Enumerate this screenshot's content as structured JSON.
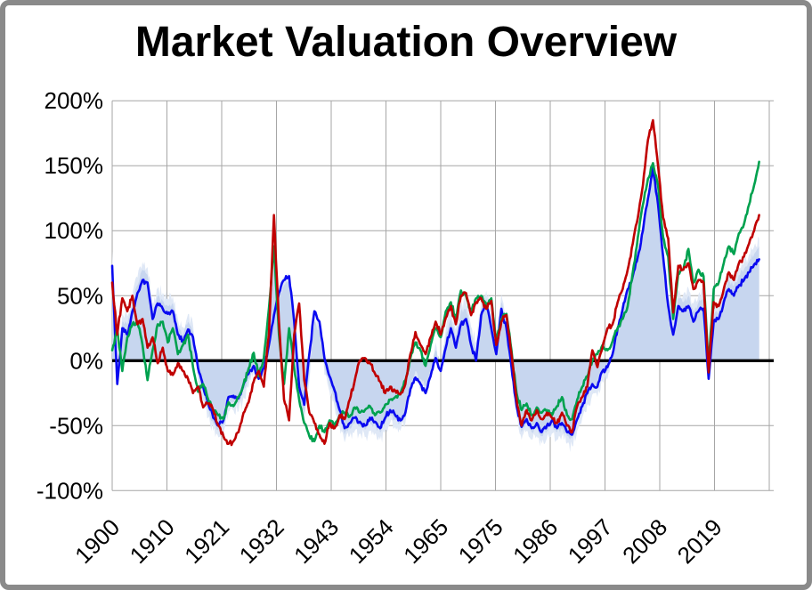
{
  "window": {
    "frame_color": "#8a8a8a",
    "background": "#ffffff"
  },
  "chart_data": {
    "type": "line",
    "title": "Market Valuation Overview",
    "xlabel": "",
    "ylabel": "",
    "legend": "none",
    "grid": true,
    "baseline": 0,
    "y_axis": {
      "min": -100,
      "max": 200,
      "unit": "percent",
      "tick_labels": [
        "200%",
        "150%",
        "100%",
        "50%",
        "0%",
        "-50%",
        "-100%"
      ],
      "tick_values": [
        200,
        150,
        100,
        50,
        0,
        -50,
        -100
      ]
    },
    "x_axis": {
      "tick_labels": [
        "1900",
        "1910",
        "1921",
        "1932",
        "1943",
        "1954",
        "1965",
        "1975",
        "1986",
        "1997",
        "2008",
        "2019"
      ],
      "x_start": 1900,
      "x_end": 2028,
      "x_step_years": 1
    },
    "colors": {
      "grid": "#a6a6a6",
      "zero_line": "#000000",
      "red": "#c00000",
      "green": "#00a14e",
      "blue": "#0a0af0",
      "band": "#c7d6ef",
      "band_fringe": "#dfe8f6",
      "text": "#000000"
    },
    "series": [
      {
        "name": "red-line",
        "type": "line",
        "color": "#c00000",
        "values": [
          60,
          20,
          48,
          38,
          50,
          28,
          32,
          10,
          18,
          -2,
          10,
          -8,
          -11,
          -2,
          -8,
          -14,
          -25,
          -20,
          -36,
          -33,
          -38,
          -50,
          -58,
          -64,
          -62,
          -55,
          -40,
          -32,
          -16,
          -8,
          -20,
          20,
          112,
          30,
          -30,
          -46,
          20,
          44,
          -15,
          -40,
          -48,
          -57,
          -64,
          -48,
          -52,
          -42,
          -45,
          -30,
          -15,
          0,
          2,
          -2,
          -10,
          -16,
          -25,
          -20,
          -23,
          -26,
          -18,
          5,
          22,
          12,
          5,
          18,
          30,
          20,
          33,
          42,
          28,
          50,
          52,
          35,
          45,
          48,
          40,
          46,
          12,
          30,
          35,
          5,
          -30,
          -50,
          -38,
          -46,
          -38,
          -45,
          -40,
          -44,
          -48,
          -40,
          -50,
          -55,
          -35,
          -28,
          -20,
          8,
          -5,
          10,
          25,
          28,
          45,
          55,
          70,
          90,
          110,
          135,
          170,
          185,
          150,
          110,
          94,
          37,
          73,
          70,
          75,
          55,
          62,
          60,
          -9,
          45,
          42,
          55,
          68,
          62,
          75,
          80,
          90,
          100,
          112
        ]
      },
      {
        "name": "green-line",
        "type": "line",
        "color": "#00a14e",
        "values": [
          8,
          25,
          -8,
          18,
          28,
          30,
          12,
          -15,
          8,
          28,
          30,
          14,
          25,
          5,
          12,
          20,
          -5,
          -24,
          -18,
          -30,
          -38,
          -42,
          -45,
          -32,
          -35,
          -28,
          -18,
          -6,
          6,
          -12,
          2,
          40,
          88,
          20,
          -18,
          25,
          -5,
          -30,
          -48,
          -58,
          -62,
          -50,
          -55,
          -46,
          -50,
          -42,
          -40,
          -43,
          -36,
          -40,
          -38,
          -35,
          -42,
          -40,
          -34,
          -30,
          -28,
          -26,
          -15,
          2,
          14,
          8,
          -4,
          12,
          25,
          18,
          38,
          45,
          32,
          54,
          50,
          38,
          48,
          50,
          42,
          48,
          14,
          32,
          36,
          8,
          -25,
          -38,
          -33,
          -42,
          -36,
          -40,
          -38,
          -42,
          -35,
          -28,
          -42,
          -45,
          -30,
          -20,
          -12,
          0,
          5,
          12,
          8,
          15,
          25,
          32,
          42,
          68,
          95,
          120,
          140,
          152,
          135,
          95,
          80,
          32,
          67,
          70,
          86,
          60,
          70,
          65,
          -4,
          55,
          60,
          75,
          88,
          82,
          98,
          105,
          120,
          135,
          153
        ]
      },
      {
        "name": "blue-line",
        "type": "line",
        "color": "#0a0af0",
        "values": [
          73,
          -18,
          25,
          20,
          38,
          52,
          62,
          60,
          32,
          44,
          40,
          36,
          38,
          20,
          15,
          24,
          18,
          -6,
          -20,
          -33,
          -44,
          -50,
          -46,
          -28,
          -27,
          -29,
          -18,
          -10,
          -4,
          -14,
          -6,
          12,
          35,
          52,
          62,
          65,
          30,
          -20,
          -34,
          5,
          38,
          30,
          2,
          -12,
          -23,
          -38,
          -52,
          -48,
          -44,
          -47,
          -50,
          -44,
          -47,
          -52,
          -44,
          -38,
          -42,
          -46,
          -40,
          -22,
          -13,
          -18,
          -25,
          -12,
          2,
          -8,
          10,
          25,
          10,
          28,
          32,
          12,
          0,
          35,
          43,
          25,
          5,
          40,
          25,
          -5,
          -35,
          -51,
          -45,
          -52,
          -48,
          -55,
          -50,
          -46,
          -52,
          -48,
          -55,
          -57,
          -45,
          -35,
          -25,
          -18,
          -20,
          -8,
          -5,
          5,
          25,
          40,
          55,
          65,
          80,
          100,
          125,
          148,
          120,
          80,
          42,
          20,
          42,
          38,
          42,
          30,
          38,
          40,
          -14,
          30,
          32,
          45,
          55,
          50,
          58,
          62,
          68,
          74,
          78
        ]
      },
      {
        "name": "shaded-band",
        "type": "area",
        "color": "#c7d6ef",
        "values": [
          78,
          -10,
          30,
          28,
          45,
          58,
          70,
          66,
          38,
          50,
          46,
          42,
          44,
          26,
          20,
          30,
          22,
          -10,
          -25,
          -38,
          -48,
          -53,
          -50,
          -33,
          -32,
          -33,
          -22,
          -14,
          -2,
          -10,
          -2,
          25,
          70,
          48,
          58,
          60,
          25,
          -25,
          -40,
          -10,
          30,
          22,
          -5,
          -18,
          -30,
          -45,
          -57,
          -52,
          -48,
          -50,
          -53,
          -48,
          -50,
          -55,
          -48,
          -42,
          -45,
          -48,
          -42,
          -20,
          -8,
          -14,
          -20,
          -8,
          8,
          -2,
          18,
          32,
          18,
          38,
          40,
          20,
          8,
          40,
          48,
          30,
          10,
          45,
          30,
          0,
          -38,
          -55,
          -48,
          -55,
          -52,
          -58,
          -54,
          -50,
          -55,
          -52,
          -58,
          -60,
          -48,
          -38,
          -28,
          -20,
          -22,
          -10,
          -8,
          2,
          22,
          38,
          52,
          62,
          78,
          98,
          122,
          143,
          115,
          75,
          45,
          25,
          48,
          45,
          50,
          38,
          45,
          48,
          -5,
          35,
          38,
          52,
          62,
          58,
          66,
          70,
          76,
          82,
          88
        ]
      }
    ],
    "style_hints": {
      "monthly_noise_amplitude_pct": 2.2,
      "fringe_offset_pct": 6
    }
  }
}
